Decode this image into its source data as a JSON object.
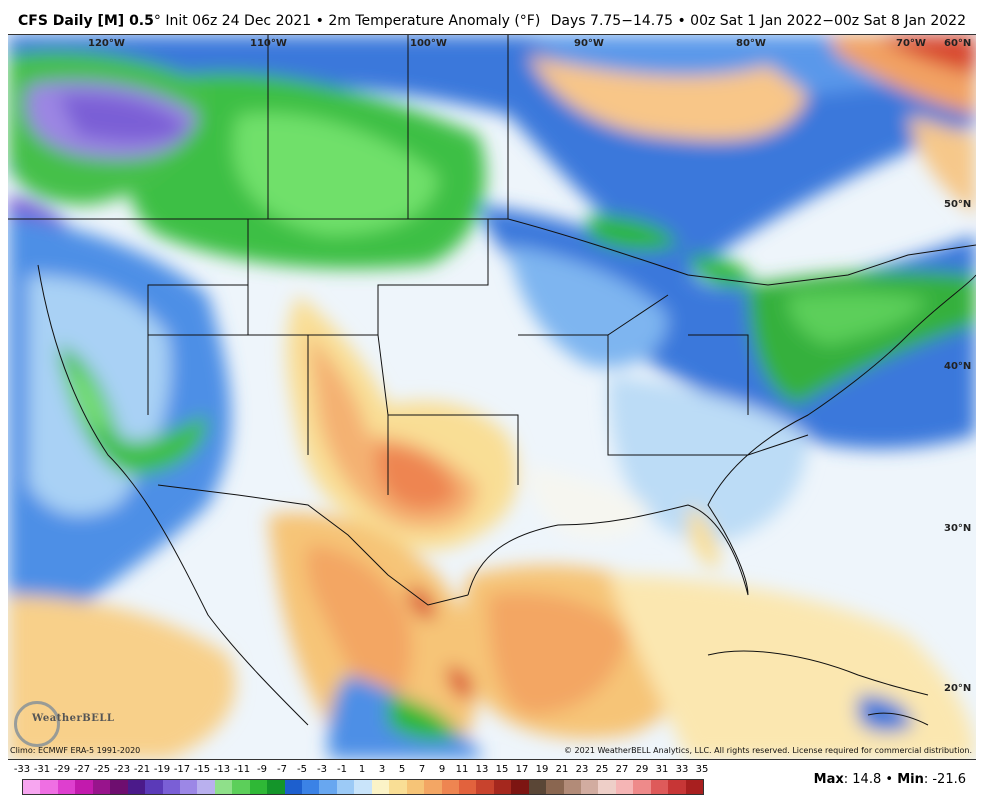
{
  "header": {
    "title_bold": "CFS Daily [M] 0.5",
    "title_rest": "° Init 06z 24 Dec 2021 • 2m Temperature Anomaly (°F)",
    "valid": "Days 7.75−14.75 • 00z Sat 1 Jan 2022−00z Sat 8 Jan 2022"
  },
  "map": {
    "lon_labels": [
      "120°W",
      "110°W",
      "100°W",
      "90°W",
      "80°W",
      "70°W"
    ],
    "lat_labels": [
      "60°N",
      "50°N",
      "40°N",
      "30°N",
      "20°N"
    ]
  },
  "logo": {
    "text": "WeatherBELL"
  },
  "footer": {
    "climo": "Climo: ECMWF ERA-5 1991-2020",
    "copyright": "© 2021 WeatherBELL Analytics, LLC. All rights reserved. License required for commercial distribution."
  },
  "colorbar": {
    "labels": [
      "-33",
      "-31",
      "-29",
      "-27",
      "-25",
      "-23",
      "-21",
      "-19",
      "-17",
      "-15",
      "-13",
      "-11",
      "-9",
      "-7",
      "-5",
      "-3",
      "-1",
      "1",
      "3",
      "5",
      "7",
      "9",
      "11",
      "13",
      "15",
      "17",
      "19",
      "21",
      "23",
      "25",
      "27",
      "29",
      "31",
      "33",
      "35"
    ],
    "colors": [
      "#f7a6f0",
      "#ef6fe3",
      "#de3fcf",
      "#c21aad",
      "#98148c",
      "#6e0e6f",
      "#4b1a8a",
      "#5b3ab8",
      "#7a5fd6",
      "#9c87e6",
      "#b9b0ee",
      "#8fe08a",
      "#5ccf5a",
      "#2fb836",
      "#14952a",
      "#1d5fce",
      "#3b82e6",
      "#68a7f0",
      "#9ccaf6",
      "#c9e4fa",
      "#fbf3c7",
      "#f9de95",
      "#f6c477",
      "#f3a664",
      "#ee8551",
      "#e2623d",
      "#c8432d",
      "#a5281e",
      "#7d1512",
      "#5a4636",
      "#8a6650",
      "#b28b78",
      "#d2aca0",
      "#eecfc8",
      "#f5b5b5",
      "#ee8a8a",
      "#de5a5a",
      "#c73636",
      "#a81f1f"
    ]
  },
  "stats": {
    "max_label": "Max",
    "max_value": "14.8",
    "separator": "•",
    "min_label": "Min",
    "min_value": "-21.6"
  }
}
